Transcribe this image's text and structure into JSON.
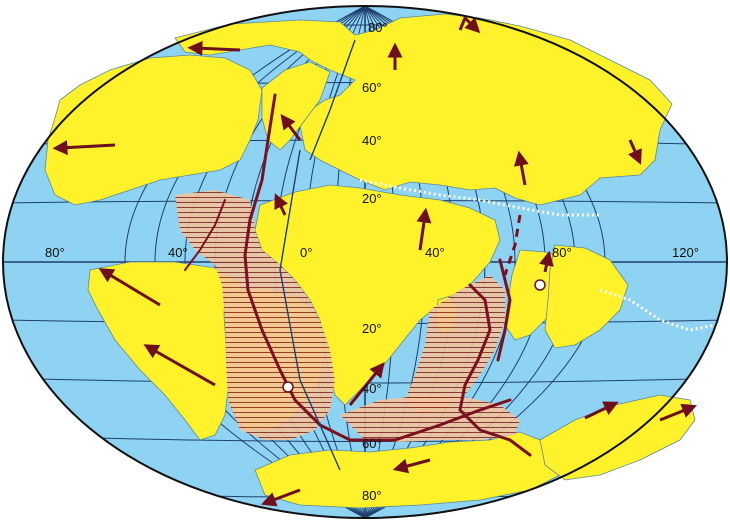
{
  "map": {
    "colors": {
      "ocean": "#8fd3f2",
      "land": "#fff22a",
      "graticule": "#1f3f6e",
      "ridge": "#7a1020",
      "arrow": "#6e0f1d",
      "rift_fill": "#f1c49c",
      "border": "#111111"
    },
    "latitude_labels": [
      "80°",
      "60°",
      "40°",
      "20°",
      "0°",
      "20°",
      "40°",
      "60°",
      "80°"
    ],
    "longitude_labels": [
      "80°",
      "40°",
      "0°",
      "40°",
      "80°",
      "120°"
    ],
    "icons": {
      "plate_arrow": "arrow-icon",
      "hotspot": "hotspot-circle-icon",
      "ridge": "spreading-ridge-line",
      "subduction": "subduction-zone-line"
    }
  }
}
